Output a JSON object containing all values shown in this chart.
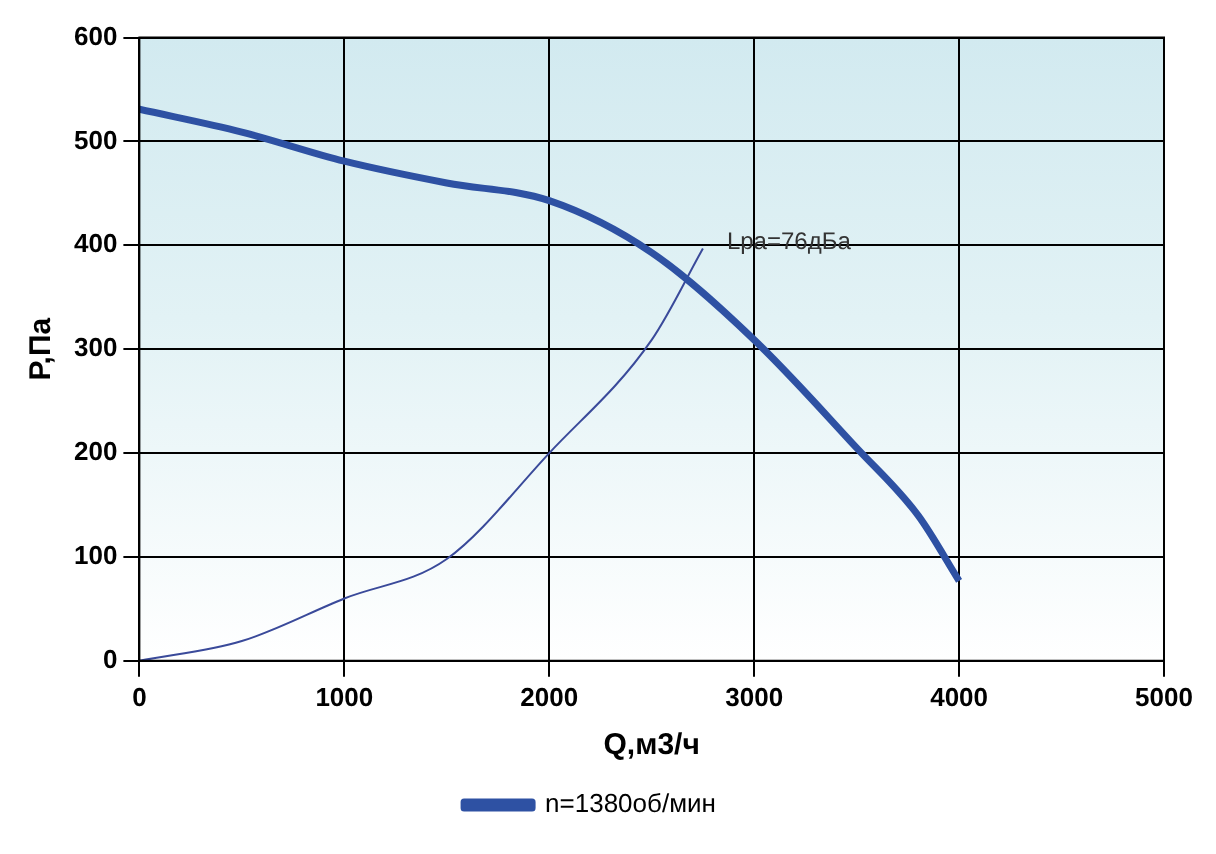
{
  "chart_data": {
    "type": "line",
    "xlabel": "Q,м3/ч",
    "ylabel": "P,Па",
    "series": [
      {
        "name": "n=1380об/мин",
        "color": "#2e51a3",
        "x": [
          0,
          500,
          1000,
          1500,
          2000,
          2500,
          3000,
          3500,
          3800,
          4000
        ],
        "values": [
          531,
          509,
          481,
          460,
          443,
          393,
          309,
          205,
          140,
          77
        ]
      },
      {
        "color": "#3a4a9a",
        "x": [
          0,
          500,
          1000,
          1500,
          2000,
          2500,
          2750
        ],
        "values": [
          0,
          19,
          60,
          98,
          200,
          309,
          397
        ]
      }
    ],
    "annotations": [
      {
        "text": "Lpa=76дБа",
        "x": 2750,
        "y": 397
      }
    ],
    "xlim": [
      0,
      5000
    ],
    "xticks": [
      0,
      1000,
      2000,
      3000,
      4000,
      5000
    ],
    "ylim": [
      0,
      600
    ],
    "yticks": [
      0,
      100,
      200,
      300,
      400,
      500,
      600
    ],
    "grid": true,
    "legend": "bottom",
    "marker": "none",
    "line_style": "solid"
  }
}
